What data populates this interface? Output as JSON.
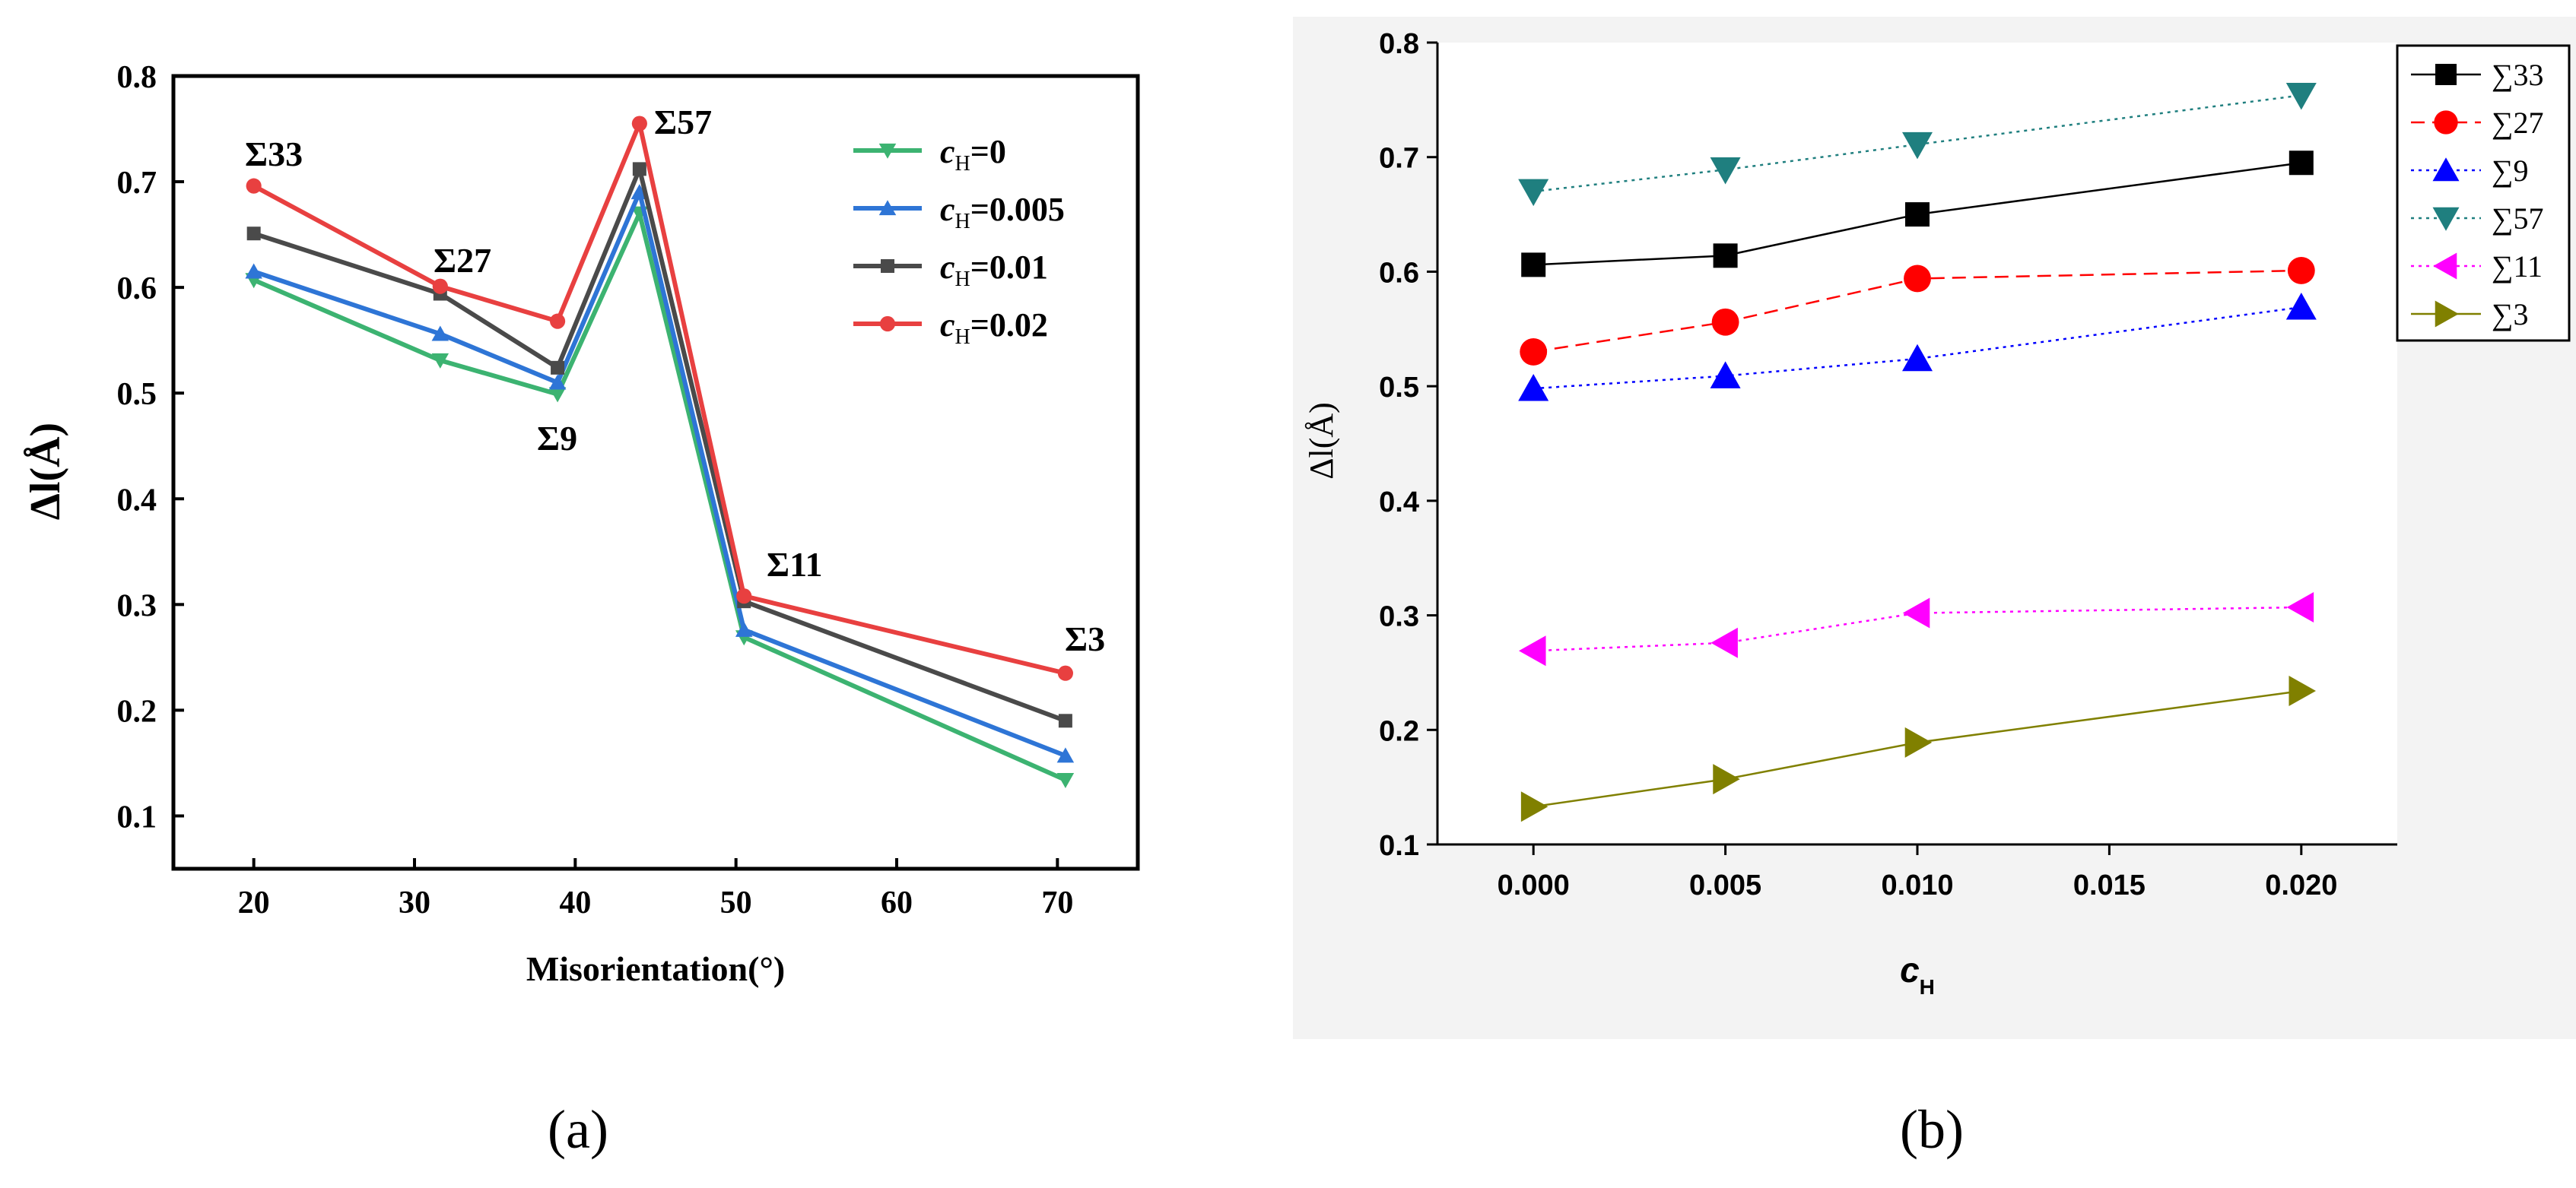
{
  "chart_data": [
    {
      "type": "line",
      "panel_label": "(a)",
      "title": "",
      "xlabel": "Misorientation(°)",
      "ylabel": "Δl(Å)",
      "xlim": [
        15,
        75
      ],
      "ylim": [
        0.05,
        0.8
      ],
      "xticks": [
        "20",
        "30",
        "40",
        "50",
        "60",
        "70"
      ],
      "yticks": [
        "0.1",
        "0.2",
        "0.3",
        "0.4",
        "0.5",
        "0.6",
        "0.7",
        "0.8"
      ],
      "grid": false,
      "legend_position": "top-right",
      "x": [
        20,
        31.6,
        38.9,
        44,
        50.5,
        70.5
      ],
      "series": [
        {
          "name": "cH=0",
          "legend_var": "c",
          "legend_sub": "H",
          "legend_val": "=0",
          "color": "#3cb371",
          "marker": "triangle-down",
          "values": [
            0.607,
            0.531,
            0.499,
            0.67,
            0.269,
            0.134
          ]
        },
        {
          "name": "cH=0.005",
          "legend_var": "c",
          "legend_sub": "H",
          "legend_val": "=0.005",
          "color": "#2e75d6",
          "marker": "triangle-up",
          "values": [
            0.615,
            0.556,
            0.51,
            0.69,
            0.276,
            0.157
          ]
        },
        {
          "name": "cH=0.01",
          "legend_var": "c",
          "legend_sub": "H",
          "legend_val": "=0.01",
          "color": "#4a4a4a",
          "marker": "square",
          "values": [
            0.651,
            0.594,
            0.524,
            0.712,
            0.303,
            0.19
          ]
        },
        {
          "name": "cH=0.02",
          "legend_var": "c",
          "legend_sub": "H",
          "legend_val": "=0.02",
          "color": "#e84040",
          "marker": "circle",
          "values": [
            0.696,
            0.601,
            0.568,
            0.755,
            0.308,
            0.235
          ]
        }
      ],
      "annotations": [
        "Σ33",
        "Σ27",
        "Σ9",
        "Σ57",
        "Σ11",
        "Σ3"
      ]
    },
    {
      "type": "line",
      "panel_label": "(b)",
      "title": "",
      "xlabel": "cH",
      "xlabel_var": "c",
      "xlabel_sub": "H",
      "ylabel": "Δl(Å)",
      "xlim": [
        -0.0025,
        0.0225
      ],
      "ylim": [
        0.1,
        0.8
      ],
      "xticks": [
        "0.000",
        "0.005",
        "0.010",
        "0.015",
        "0.020"
      ],
      "yticks": [
        "0.1",
        "0.2",
        "0.3",
        "0.4",
        "0.5",
        "0.6",
        "0.7",
        "0.8"
      ],
      "grid": false,
      "legend_position": "right-outside",
      "x": [
        0,
        0.005,
        0.01,
        0.02
      ],
      "series": [
        {
          "name": "∑33",
          "color": "#000000",
          "marker": "square",
          "dash": "solid",
          "values": [
            0.606,
            0.614,
            0.65,
            0.695
          ]
        },
        {
          "name": "∑27",
          "color": "#ff0000",
          "marker": "circle",
          "dash": "dashed",
          "values": [
            0.53,
            0.556,
            0.594,
            0.601
          ]
        },
        {
          "name": "∑9",
          "color": "#0000ff",
          "marker": "triangle-up",
          "dash": "dotted",
          "values": [
            0.498,
            0.509,
            0.524,
            0.569
          ]
        },
        {
          "name": "∑57",
          "color": "#1f7f7f",
          "marker": "triangle-down",
          "dash": "dotted",
          "values": [
            0.67,
            0.689,
            0.711,
            0.754
          ]
        },
        {
          "name": "∑11",
          "color": "#ff00ff",
          "marker": "triangle-left",
          "dash": "dotted",
          "values": [
            0.269,
            0.276,
            0.302,
            0.307
          ]
        },
        {
          "name": "∑3",
          "color": "#808000",
          "marker": "triangle-right",
          "dash": "solid",
          "values": [
            0.133,
            0.157,
            0.189,
            0.234
          ]
        }
      ]
    }
  ]
}
